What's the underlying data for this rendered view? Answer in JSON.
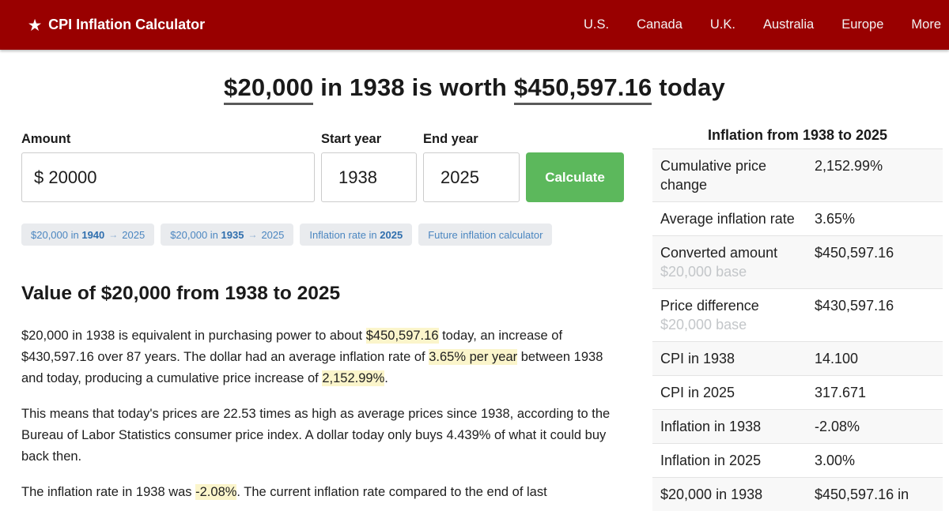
{
  "header": {
    "brand": {
      "icon": "★",
      "label": "CPI Inflation Calculator"
    },
    "nav": [
      "U.S.",
      "Canada",
      "U.K.",
      "Australia",
      "Europe",
      "More"
    ]
  },
  "title": {
    "amount": "$20,000",
    "middle": " in 1938 is worth ",
    "converted": "$450,597.16",
    "end": " today"
  },
  "form": {
    "amount": {
      "label": "Amount",
      "value": "$ 20000"
    },
    "start_year": {
      "label": "Start year",
      "value": "1938"
    },
    "end_year": {
      "label": "End year",
      "value": "2025"
    },
    "calculate_label": "Calculate"
  },
  "chips": [
    {
      "prefix": "$20,000 in ",
      "bold": "1940",
      "arrow": "→",
      "suffix": "2025"
    },
    {
      "prefix": "$20,000 in ",
      "bold": "1935",
      "arrow": "→",
      "suffix": "2025"
    },
    {
      "prefix": "Inflation rate in ",
      "bold": "2025"
    },
    {
      "prefix": "Future inflation calculator"
    }
  ],
  "article": {
    "heading": "Value of $20,000 from 1938 to 2025",
    "p1": {
      "t1": "$20,000 in 1938 is equivalent in purchasing power to about ",
      "h1": "$450,597.16",
      "t2": " today, an increase of $430,597.16 over 87 years. The dollar had an average inflation rate of ",
      "h2": "3.65% per year",
      "t3": " between 1938 and today, producing a cumulative price increase of ",
      "h3": "2,152.99%",
      "t4": "."
    },
    "p2": "This means that today's prices are 22.53 times as high as average prices since 1938, according to the Bureau of Labor Statistics consumer price index. A dollar today only buys 4.439% of what it could buy back then.",
    "p3": {
      "t1": "The inflation rate in 1938 was ",
      "h1": "-2.08%",
      "t2": ". The current inflation rate compared to the end of last"
    }
  },
  "sidebar": {
    "title": "Inflation from 1938 to 2025",
    "rows": [
      {
        "label": "Cumulative price change",
        "value": "2,152.99%"
      },
      {
        "label": "Average inflation rate",
        "value": "3.65%"
      },
      {
        "label": "Converted amount",
        "sublabel": "$20,000 base",
        "value": "$450,597.16"
      },
      {
        "label": "Price difference",
        "sublabel": "$20,000 base",
        "value": "$430,597.16"
      },
      {
        "label": "CPI in 1938",
        "value": "14.100"
      },
      {
        "label": "CPI in 2025",
        "value": "317.671"
      },
      {
        "label": "Inflation in 1938",
        "value": "-2.08%"
      },
      {
        "label": "Inflation in 2025",
        "value": "3.00%"
      },
      {
        "label": "$20,000 in 1938",
        "value": "$450,597.16 in"
      }
    ]
  },
  "colors": {
    "header_red": "#990000",
    "button_green": "#5cb85c",
    "highlight_yellow": "#fbf5cb",
    "chip_link_blue": "#4b86c0",
    "table_stripe": "#f8f8f8"
  }
}
